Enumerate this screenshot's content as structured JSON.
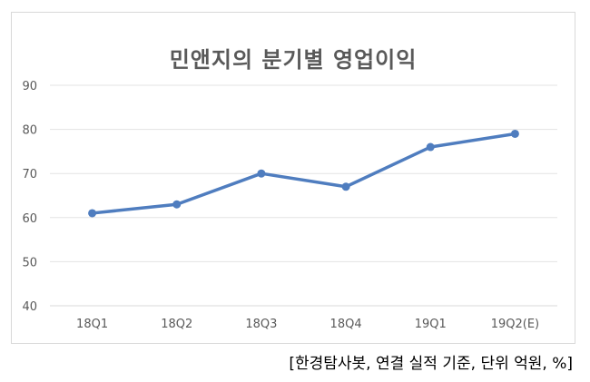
{
  "chart_data": {
    "type": "line",
    "title": "민앤지의 분기별 영업이익",
    "categories": [
      "18Q1",
      "18Q2",
      "18Q3",
      "18Q4",
      "19Q1",
      "19Q2(E)"
    ],
    "series": [
      {
        "values": [
          61,
          63,
          70,
          67,
          76,
          79
        ],
        "color": "#4f7dbf"
      }
    ],
    "yticks": [
      "40",
      "50",
      "60",
      "70",
      "80",
      "90"
    ],
    "ylim": [
      40,
      90
    ],
    "xlabel": "",
    "ylabel": "",
    "grid": true,
    "legend": "none"
  },
  "source_note": "[한경탐사봇, 연결 실적 기준, 단위 억원, %]"
}
